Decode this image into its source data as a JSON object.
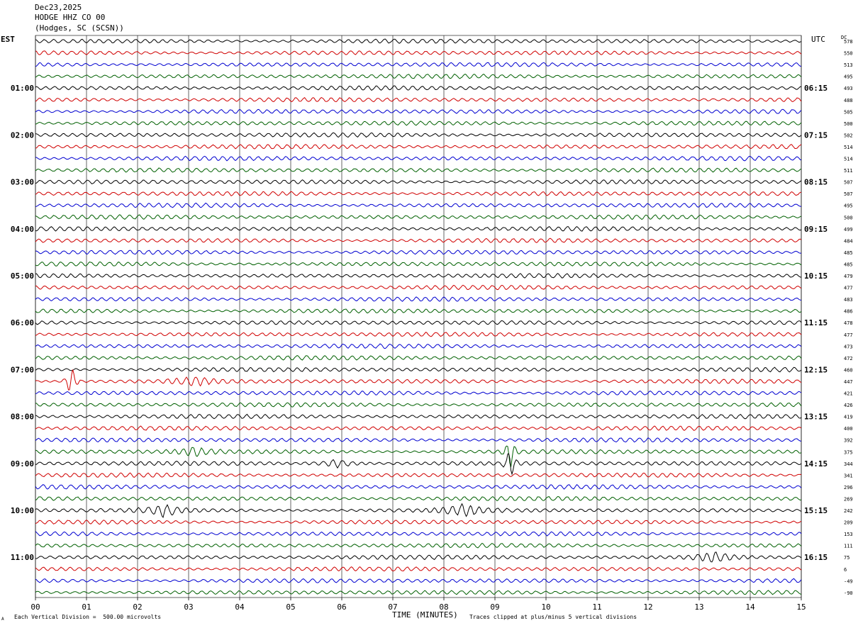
{
  "header": {
    "date": "Dec23,2025",
    "station": "HODGE HHZ CO 00",
    "location": "(Hodges, SC (SCSN))"
  },
  "left_zone_label": "EST",
  "right_zone_label": "UTC",
  "dc_label": "DC",
  "chart_data": {
    "type": "line",
    "title": "",
    "xlabel": "TIME (MINUTES)",
    "xlim": [
      0,
      15
    ],
    "x_ticks": [
      "00",
      "01",
      "02",
      "03",
      "04",
      "05",
      "06",
      "07",
      "08",
      "09",
      "10",
      "11",
      "12",
      "13",
      "14",
      "15"
    ],
    "trace_minutes_per_line": 15,
    "trace_colors": [
      "#000000",
      "#d00000",
      "#0000d0",
      "#006000"
    ],
    "left_hour_labels": [
      "01:00",
      "02:00",
      "03:00",
      "04:00",
      "05:00",
      "06:00",
      "07:00",
      "08:00",
      "09:00",
      "10:00",
      "11:00"
    ],
    "right_hour_labels": [
      "06:15",
      "07:15",
      "08:15",
      "09:15",
      "10:15",
      "11:15",
      "12:15",
      "13:15",
      "14:15",
      "15:15",
      "16:15"
    ],
    "dc_offsets": [
      "578",
      "550",
      "513",
      "495",
      "493",
      "488",
      "505",
      "500",
      "502",
      "514",
      "514",
      "511",
      "507",
      "507",
      "495",
      "500",
      "499",
      "484",
      "485",
      "485",
      "479",
      "477",
      "483",
      "486",
      "478",
      "477",
      "473",
      "472",
      "460",
      "447",
      "421",
      "426",
      "419",
      "400",
      "392",
      "375",
      "344",
      "341",
      "296",
      "269",
      "242",
      "209",
      "153",
      "111",
      "75",
      "6",
      "-49",
      "-90"
    ],
    "events": [
      {
        "trace": 29,
        "minute": 0.7,
        "amplitude": "large"
      },
      {
        "trace": 29,
        "minute": 3.1,
        "amplitude": "small"
      },
      {
        "trace": 35,
        "minute": 3.1,
        "amplitude": "small"
      },
      {
        "trace": 35,
        "minute": 9.3,
        "amplitude": "large"
      },
      {
        "trace": 36,
        "minute": 5.9,
        "amplitude": "small"
      },
      {
        "trace": 36,
        "minute": 9.3,
        "amplitude": "large"
      },
      {
        "trace": 40,
        "minute": 2.5,
        "amplitude": "medium"
      },
      {
        "trace": 40,
        "minute": 8.4,
        "amplitude": "medium"
      },
      {
        "trace": 44,
        "minute": 13.3,
        "amplitude": "medium"
      }
    ]
  },
  "footer": {
    "scale_note": "Each Vertical Division =  500.00 microvolts",
    "clip_note": "Traces clipped at plus/minus 5 vertical divisions",
    "corner_mark": "A"
  }
}
